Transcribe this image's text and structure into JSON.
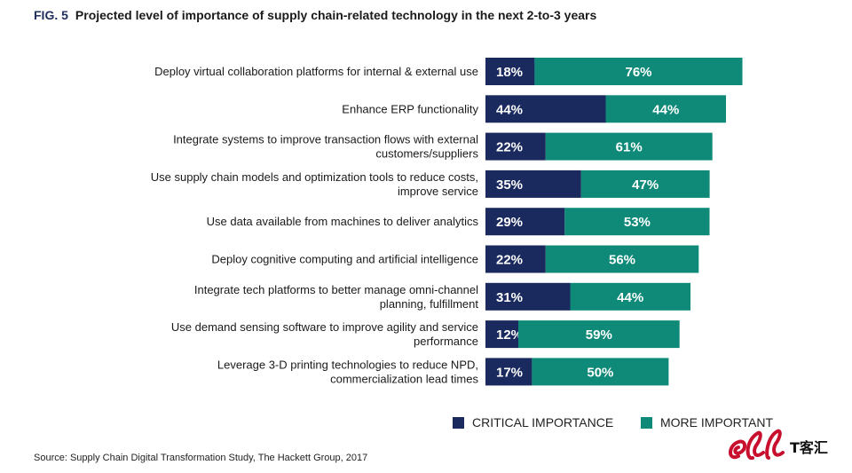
{
  "header": {
    "fig": "FIG. 5",
    "title": "Projected level of importance of supply chain-related technology in the next 2-to-3 years"
  },
  "chart_data": {
    "type": "bar",
    "orientation": "horizontal",
    "stacked": true,
    "categories": [
      [
        "Deploy virtual collaboration platforms for internal & external use"
      ],
      [
        "Enhance ERP functionality"
      ],
      [
        "Integrate systems to improve transaction flows with external",
        "customers/suppliers"
      ],
      [
        "Use supply chain models and optimization tools to reduce costs,",
        "improve service"
      ],
      [
        "Use data available from machines to deliver analytics"
      ],
      [
        "Deploy cognitive computing and artificial intelligence"
      ],
      [
        "Integrate tech platforms to better manage omni-channel",
        "planning, fulfillment"
      ],
      [
        "Use demand sensing software to improve agility and service",
        "performance"
      ],
      [
        "Leverage 3-D printing technologies to reduce NPD,",
        "commercialization lead times"
      ]
    ],
    "series": [
      {
        "name": "CRITICAL IMPORTANCE",
        "color": "#1a2a5e",
        "values": [
          18,
          44,
          22,
          35,
          29,
          22,
          31,
          12,
          17
        ]
      },
      {
        "name": "MORE IMPORTANT",
        "color": "#0f8a79",
        "values": [
          76,
          44,
          61,
          47,
          53,
          56,
          44,
          59,
          50
        ]
      }
    ],
    "value_suffix": "%",
    "legend_position": "bottom-right",
    "grid": false
  },
  "source": "Source: Supply Chain Digital Transformation Study, The Hackett Group, 2017",
  "watermark": {
    "text": "T客汇",
    "icon": "t-kehui-logo-icon"
  }
}
